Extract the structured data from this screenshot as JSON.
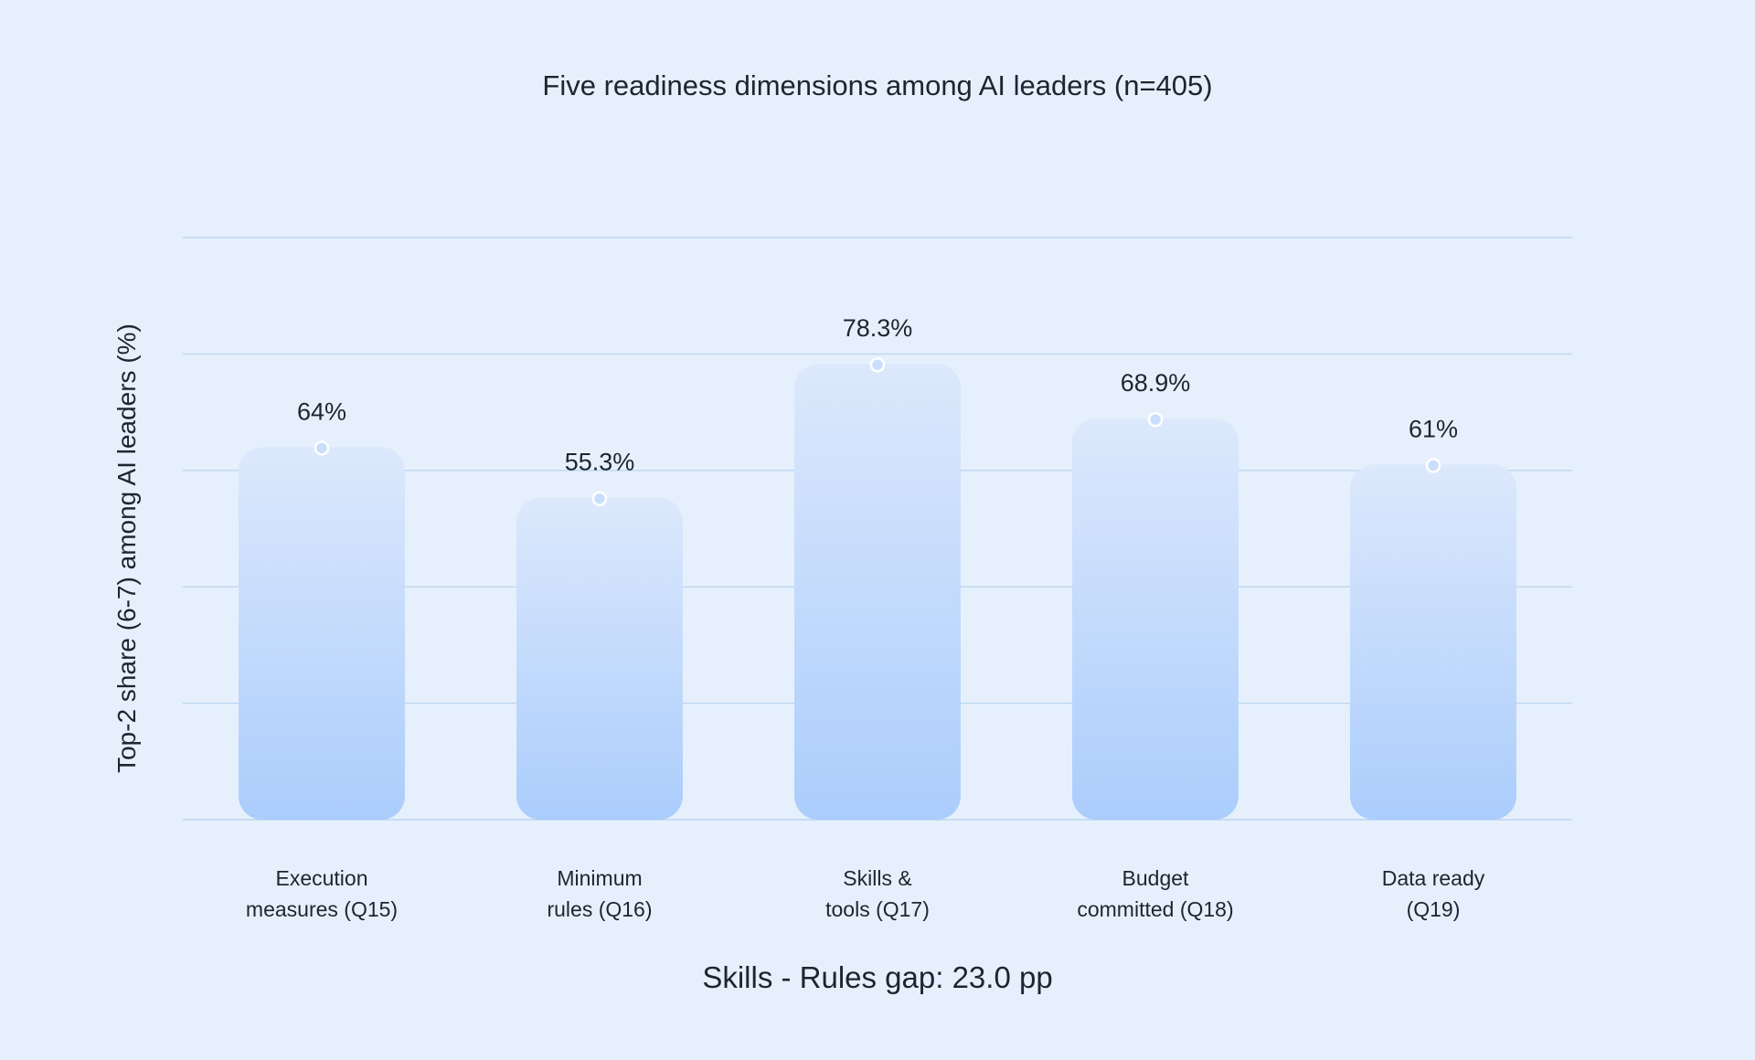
{
  "chart_data": {
    "type": "bar",
    "title": "Five readiness dimensions among AI leaders (n=405)",
    "ylabel": "Top-2 share (6-7) among AI leaders (%)",
    "xlabel": "",
    "categories": [
      [
        "Execution",
        "measures (Q15)"
      ],
      [
        "Minimum",
        "rules (Q16)"
      ],
      [
        "Skills &",
        "tools (Q17)"
      ],
      [
        "Budget",
        "committed (Q18)"
      ],
      [
        "Data ready",
        "(Q19)"
      ]
    ],
    "values": [
      64,
      55.3,
      78.3,
      68.9,
      61
    ],
    "value_labels": [
      "64%",
      "55.3%",
      "78.3%",
      "68.9%",
      "61%"
    ],
    "ylim": [
      0,
      100
    ],
    "grid": true,
    "legend": null,
    "annotation": "Skills - Rules gap: 23.0 pp",
    "colors": {
      "background": "#e6f0fd",
      "bar_top": "#dce8fc",
      "bar_bottom": "#abcdfc",
      "marker": "#c9defc",
      "grid": "#bcd6ee"
    }
  }
}
